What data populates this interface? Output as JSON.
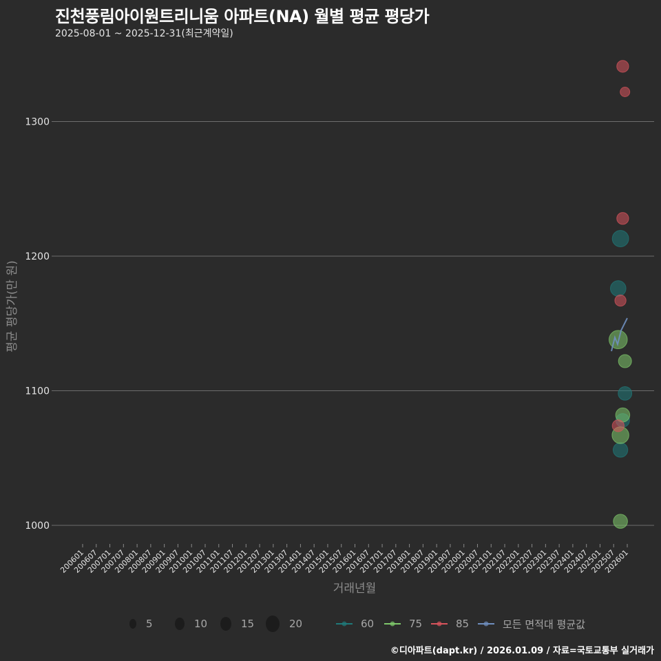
{
  "header": {
    "title": "진천풍림아이원트리니움 아파트(NA) 월별 평균 평당가",
    "subtitle": "2025-08-01 ~ 2025-12-31(최근계약일)"
  },
  "footer": {
    "credit": "©디아파트(dapt.kr) / 2026.01.09 / 자료=국토교통부 실거래가"
  },
  "legend": {
    "size_title": "",
    "sizes": [
      {
        "label": "5",
        "r": 7
      },
      {
        "label": "10",
        "r": 9
      },
      {
        "label": "15",
        "r": 10
      },
      {
        "label": "20",
        "r": 12
      }
    ],
    "series": [
      {
        "label": "60",
        "color": "#1f7a7a"
      },
      {
        "label": "75",
        "color": "#7fc96b"
      },
      {
        "label": "85",
        "color": "#d9545c"
      },
      {
        "label": "모든 면적대 평균값",
        "color": "#6f8fbf"
      }
    ]
  },
  "chart_data": {
    "type": "scatter",
    "title": "진천풍림아이원트리니움 아파트(NA) 월별 평균 평당가",
    "subtitle": "2025-08-01 ~ 2025-12-31(최근계약일)",
    "xlabel": "거래년월",
    "ylabel": "평균 평당가(만 원)",
    "ylim": [
      975,
      1360
    ],
    "yticks": [
      1000,
      1100,
      1200,
      1300
    ],
    "xticks": [
      "200601",
      "200607",
      "200701",
      "200707",
      "200801",
      "200807",
      "200901",
      "200907",
      "201001",
      "201007",
      "201101",
      "201107",
      "201201",
      "201207",
      "201301",
      "201307",
      "201401",
      "201407",
      "201501",
      "201507",
      "201601",
      "201607",
      "201701",
      "201707",
      "201801",
      "201807",
      "201901",
      "201907",
      "202001",
      "202007",
      "202101",
      "202107",
      "202201",
      "202207",
      "202301",
      "202307",
      "202401",
      "202407",
      "202501",
      "202507",
      "202601"
    ],
    "grid": true,
    "legend_position": "bottom",
    "series": [
      {
        "name": "60",
        "color": "#1f7a7a",
        "points": [
          {
            "x": "202510",
            "y": 1213,
            "size": 15
          },
          {
            "x": "202509",
            "y": 1176,
            "size": 13
          },
          {
            "x": "202512",
            "y": 1098,
            "size": 9
          },
          {
            "x": "202511",
            "y": 1078,
            "size": 9
          },
          {
            "x": "202510",
            "y": 1056,
            "size": 11
          }
        ]
      },
      {
        "name": "75",
        "color": "#7fc96b",
        "points": [
          {
            "x": "202509",
            "y": 1138,
            "size": 20
          },
          {
            "x": "202512",
            "y": 1122,
            "size": 8
          },
          {
            "x": "202511",
            "y": 1082,
            "size": 10
          },
          {
            "x": "202510",
            "y": 1067,
            "size": 16
          },
          {
            "x": "202510",
            "y": 1003,
            "size": 10
          }
        ]
      },
      {
        "name": "85",
        "color": "#d9545c",
        "points": [
          {
            "x": "202511",
            "y": 1341,
            "size": 6
          },
          {
            "x": "202512",
            "y": 1322,
            "size": 3
          },
          {
            "x": "202511",
            "y": 1228,
            "size": 6
          },
          {
            "x": "202510",
            "y": 1167,
            "size": 5
          },
          {
            "x": "202509",
            "y": 1074,
            "size": 6
          }
        ]
      },
      {
        "name": "모든 면적대 평균값",
        "color": "#6f8fbf",
        "type": "line",
        "points": [
          {
            "x": "202508",
            "y": 1129
          },
          {
            "x": "202509",
            "y": 1140
          },
          {
            "x": "202509",
            "y": 1135
          },
          {
            "x": "202510",
            "y": 1145
          },
          {
            "x": "202511",
            "y": 1149
          },
          {
            "x": "202512",
            "y": 1155
          }
        ]
      }
    ]
  }
}
